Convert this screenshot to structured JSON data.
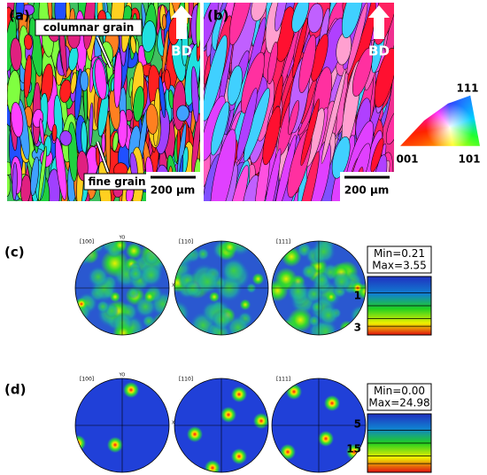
{
  "panels": [
    {
      "label": "(a)",
      "annotations": [
        "columnar grain",
        "fine grain"
      ],
      "direction": "BD",
      "scale_bar": "200 µm"
    },
    {
      "label": "(b)",
      "direction": "BD",
      "scale_bar": "200 µm"
    }
  ],
  "ipf_key": {
    "top": "111",
    "left": "001",
    "right": "101"
  },
  "pole_figures": [
    {
      "label": "(c)",
      "poles": [
        "[100]",
        "[110]",
        "[111]"
      ],
      "axes": [
        "YO",
        "XO"
      ],
      "min": "Min=0.21",
      "max": "Max=3.55",
      "ticks": [
        "1",
        "3"
      ]
    },
    {
      "label": "(d)",
      "poles": [
        "[100]",
        "[110]",
        "[111]"
      ],
      "axes": [
        "YO",
        "XO"
      ],
      "min": "Min=0.00",
      "max": "Max=24.98",
      "ticks": [
        "5",
        "15"
      ]
    }
  ]
}
